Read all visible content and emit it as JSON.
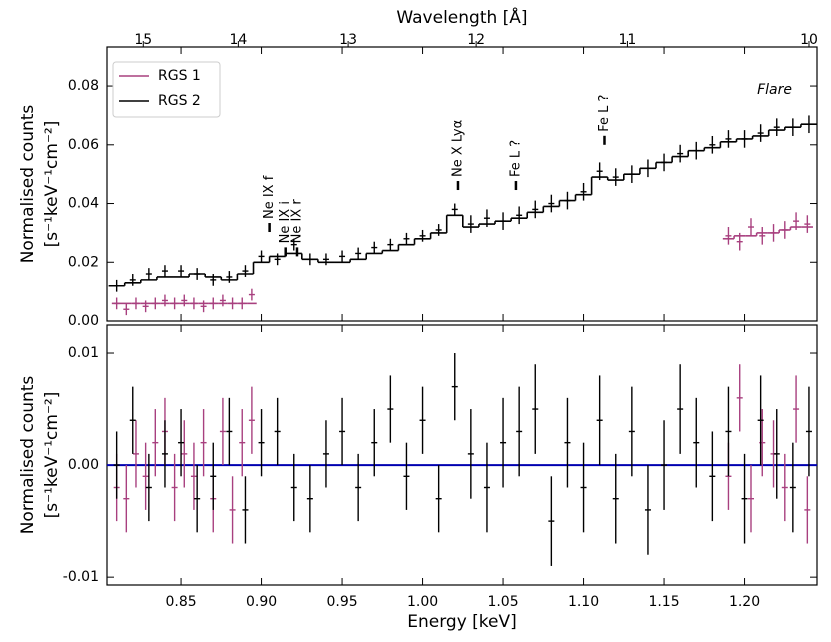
{
  "chart_data": {
    "type": "errorbar",
    "xlabel": "Energy [keV]",
    "xlim": [
      0.804,
      1.245
    ],
    "xticks": [
      0.85,
      {
        "value": 0.9,
        "label": "0.90"
      },
      0.95,
      {
        "value": 1.0,
        "label": "1.00"
      },
      1.05,
      {
        "value": 1.1,
        "label": "1.10"
      },
      1.15,
      {
        "value": 1.2,
        "label": "1.20"
      }
    ],
    "x2label": "Wavelength [Å]",
    "x2lim": [
      15.42,
      9.96
    ],
    "x2scale": "reciprocal",
    "x2ticks": [
      15,
      14,
      13,
      12,
      11,
      10
    ],
    "ylabel": [
      "Normalised counts",
      "[s⁻¹keV⁻¹cm⁻²]"
    ],
    "ylim": [
      0,
      0.0933
    ],
    "yticks": [
      {
        "value": 0,
        "label": "0.00"
      },
      0.02,
      0.04,
      0.06,
      0.08
    ],
    "residual_ylabel": [
      "Normalised counts",
      "[s⁻¹keV⁻¹cm⁻²]"
    ],
    "residual_ylim": [
      -0.0107,
      0.0125
    ],
    "residual_yticks": [
      -0.01,
      {
        "value": 0,
        "label": "0.00"
      },
      0.01
    ],
    "reference_line": 0,
    "reference_color": "#0000b0",
    "annotation": "Flare",
    "annotation_color": "#0000cc",
    "legend": "upper left",
    "lines": [
      {
        "text": "Ne IX f",
        "x": 0.905,
        "y": 0.0303
      },
      {
        "text": "Ne IX i",
        "x": 0.915,
        "y": 0.022
      },
      {
        "text": "Ne IX r",
        "x": 0.922,
        "y": 0.022
      },
      {
        "text": "Ne X Lyα",
        "x": 1.022,
        "y": 0.0446
      },
      {
        "text": "Fe L ?",
        "x": 1.058,
        "y": 0.0446
      },
      {
        "text": "Fe L ?",
        "x": 1.113,
        "y": 0.06
      }
    ],
    "series": [
      {
        "name": "RGS 1",
        "color": "#a8407f",
        "x": [
          0.81,
          0.816,
          0.822,
          0.828,
          0.834,
          0.84,
          0.846,
          0.852,
          0.858,
          0.864,
          0.87,
          0.876,
          0.882,
          0.888,
          0.894,
          1.0,
          1.19,
          1.197,
          1.204,
          1.211,
          1.218,
          1.225,
          1.232,
          1.239
        ],
        "values": [
          0.006,
          0.004,
          0.006,
          0.005,
          0.006,
          0.007,
          0.006,
          0.007,
          0.006,
          0.005,
          0.006,
          0.007,
          0.006,
          0.006,
          0.009,
          null,
          0.029,
          0.027,
          0.032,
          0.029,
          0.03,
          0.031,
          0.034,
          0.033
        ],
        "errors": [
          0.002,
          0.002,
          0.002,
          0.002,
          0.002,
          0.002,
          0.002,
          0.002,
          0.002,
          0.002,
          0.002,
          0.002,
          0.002,
          0.002,
          0.002,
          null,
          0.003,
          0.003,
          0.003,
          0.003,
          0.003,
          0.003,
          0.003,
          0.003
        ],
        "model": [
          0.006,
          0.006,
          0.006,
          0.006,
          0.006,
          0.006,
          0.006,
          0.006,
          0.006,
          0.006,
          0.006,
          0.006,
          0.006,
          0.006,
          0.006,
          null,
          0.028,
          0.029,
          0.029,
          0.03,
          0.03,
          0.031,
          0.032,
          0.032
        ],
        "residuals": [
          -0.002,
          -0.003,
          0.001,
          -0.001,
          0.002,
          0.003,
          -0.002,
          0.001,
          -0.001,
          0.002,
          -0.003,
          0.003,
          -0.004,
          0.002,
          0.004,
          null,
          -0.001,
          0.006,
          -0.003,
          0.002,
          0.001,
          -0.002,
          0.005,
          -0.004
        ],
        "residual_errors": [
          0.003,
          0.003,
          0.003,
          0.003,
          0.003,
          0.003,
          0.003,
          0.003,
          0.003,
          0.003,
          0.003,
          0.003,
          0.003,
          0.003,
          0.003,
          null,
          0.003,
          0.003,
          0.003,
          0.003,
          0.003,
          0.003,
          0.003,
          0.003
        ]
      },
      {
        "name": "RGS 2",
        "color": "#000000",
        "x": [
          0.81,
          0.82,
          0.83,
          0.84,
          0.85,
          0.86,
          0.87,
          0.88,
          0.89,
          0.9,
          0.91,
          0.92,
          0.93,
          0.94,
          0.95,
          0.96,
          0.97,
          0.98,
          0.99,
          1.0,
          1.01,
          1.02,
          1.03,
          1.04,
          1.05,
          1.06,
          1.07,
          1.08,
          1.09,
          1.1,
          1.11,
          1.12,
          1.13,
          1.14,
          1.15,
          1.16,
          1.17,
          1.18,
          1.19,
          1.2,
          1.21,
          1.22,
          1.23,
          1.24
        ],
        "values": [
          0.012,
          0.014,
          0.016,
          0.017,
          0.017,
          0.016,
          0.014,
          0.015,
          0.017,
          0.022,
          0.021,
          0.026,
          0.021,
          0.021,
          0.022,
          0.023,
          0.025,
          0.026,
          0.028,
          0.029,
          0.031,
          0.038,
          0.033,
          0.035,
          0.034,
          0.036,
          0.038,
          0.04,
          0.041,
          0.044,
          0.051,
          0.049,
          0.05,
          0.052,
          0.054,
          0.057,
          0.058,
          0.06,
          0.062,
          0.062,
          0.064,
          0.066,
          0.066,
          0.067
        ],
        "errors": [
          0.002,
          0.002,
          0.002,
          0.002,
          0.002,
          0.002,
          0.002,
          0.002,
          0.002,
          0.002,
          0.002,
          0.002,
          0.002,
          0.002,
          0.002,
          0.002,
          0.002,
          0.002,
          0.002,
          0.002,
          0.002,
          0.002,
          0.003,
          0.003,
          0.003,
          0.003,
          0.003,
          0.003,
          0.003,
          0.003,
          0.003,
          0.003,
          0.003,
          0.003,
          0.003,
          0.003,
          0.003,
          0.003,
          0.003,
          0.003,
          0.003,
          0.003,
          0.003,
          0.003
        ],
        "model": [
          0.012,
          0.013,
          0.014,
          0.015,
          0.015,
          0.016,
          0.015,
          0.014,
          0.016,
          0.02,
          0.022,
          0.023,
          0.021,
          0.02,
          0.02,
          0.021,
          0.023,
          0.024,
          0.026,
          0.028,
          0.03,
          0.036,
          0.032,
          0.033,
          0.034,
          0.035,
          0.037,
          0.039,
          0.041,
          0.043,
          0.049,
          0.048,
          0.05,
          0.052,
          0.054,
          0.056,
          0.058,
          0.059,
          0.061,
          0.062,
          0.063,
          0.065,
          0.066,
          0.067
        ],
        "residuals": [
          0.0,
          0.004,
          -0.002,
          0.001,
          0.002,
          -0.003,
          -0.001,
          0.003,
          -0.004,
          0.002,
          0.003,
          -0.002,
          -0.003,
          0.001,
          0.003,
          -0.002,
          0.002,
          0.005,
          -0.001,
          0.004,
          -0.003,
          0.007,
          0.001,
          -0.002,
          0.002,
          0.003,
          0.005,
          -0.005,
          0.002,
          -0.002,
          0.004,
          -0.003,
          0.003,
          -0.004,
          0.0,
          0.005,
          0.002,
          -0.001,
          0.003,
          -0.003,
          0.004,
          0.001,
          -0.002,
          0.003
        ],
        "residual_errors": [
          0.003,
          0.003,
          0.003,
          0.003,
          0.003,
          0.003,
          0.003,
          0.003,
          0.003,
          0.003,
          0.003,
          0.003,
          0.003,
          0.003,
          0.003,
          0.003,
          0.003,
          0.003,
          0.003,
          0.003,
          0.003,
          0.003,
          0.004,
          0.004,
          0.004,
          0.004,
          0.004,
          0.004,
          0.004,
          0.004,
          0.004,
          0.004,
          0.004,
          0.004,
          0.004,
          0.004,
          0.004,
          0.004,
          0.004,
          0.004,
          0.004,
          0.004,
          0.004,
          0.004
        ]
      }
    ]
  }
}
